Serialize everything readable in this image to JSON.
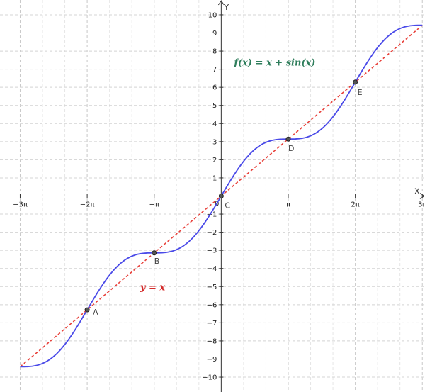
{
  "chart_data": {
    "type": "line",
    "title": "",
    "xlabel": "X",
    "ylabel": "Y",
    "xlim": [
      -10.37,
      9.55
    ],
    "ylim": [
      -10.82,
      10.82
    ],
    "grid": true,
    "x_ticks": [
      {
        "value": -9.42478,
        "label": "−3π"
      },
      {
        "value": -6.28319,
        "label": "−2π"
      },
      {
        "value": -3.14159,
        "label": "−π"
      },
      {
        "value": 3.14159,
        "label": "π"
      },
      {
        "value": 6.28319,
        "label": "2π"
      },
      {
        "value": 9.42478,
        "label": "3π"
      }
    ],
    "y_ticks": [
      {
        "value": 10,
        "label": "10"
      },
      {
        "value": 9,
        "label": "9"
      },
      {
        "value": 8,
        "label": "8"
      },
      {
        "value": 7,
        "label": "7"
      },
      {
        "value": 6,
        "label": "6"
      },
      {
        "value": 5,
        "label": "5"
      },
      {
        "value": 4,
        "label": "4"
      },
      {
        "value": 3,
        "label": "3"
      },
      {
        "value": 2,
        "label": "2"
      },
      {
        "value": 1,
        "label": "1"
      },
      {
        "value": -1,
        "label": "−1"
      },
      {
        "value": -2,
        "label": "−2"
      },
      {
        "value": -3,
        "label": "−3"
      },
      {
        "value": -4,
        "label": "−4"
      },
      {
        "value": -5,
        "label": "−5"
      },
      {
        "value": -6,
        "label": "−6"
      },
      {
        "value": -7,
        "label": "−7"
      },
      {
        "value": -8,
        "label": "−8"
      },
      {
        "value": -9,
        "label": "−9"
      },
      {
        "value": -10,
        "label": "−10"
      }
    ],
    "origin_label": "0",
    "series": [
      {
        "name": "f(x) = x + sin(x)",
        "function": "x + sin(x)",
        "domain": [
          -9.42478,
          9.42478
        ],
        "color": "#4a4ae8",
        "style": "solid"
      },
      {
        "name": "y = x",
        "function": "x",
        "domain": [
          -9.42478,
          9.42478
        ],
        "color": "#e8403a",
        "style": "dashed"
      }
    ],
    "points": [
      {
        "label": "A",
        "x": -6.28319,
        "y": -6.28319
      },
      {
        "label": "B",
        "x": -3.14159,
        "y": -3.14159
      },
      {
        "label": "C",
        "x": 0,
        "y": 0
      },
      {
        "label": "D",
        "x": 3.14159,
        "y": 3.14159
      },
      {
        "label": "E",
        "x": 6.28319,
        "y": 6.28319
      }
    ],
    "annotations": [
      {
        "text": "f(x) = x + sin(x)",
        "color": "#2e7d5b",
        "x": 0.6,
        "y": 7.2
      },
      {
        "text": "y = x",
        "color": "#d42a2a",
        "x": -3.8,
        "y": -5.2
      }
    ]
  }
}
